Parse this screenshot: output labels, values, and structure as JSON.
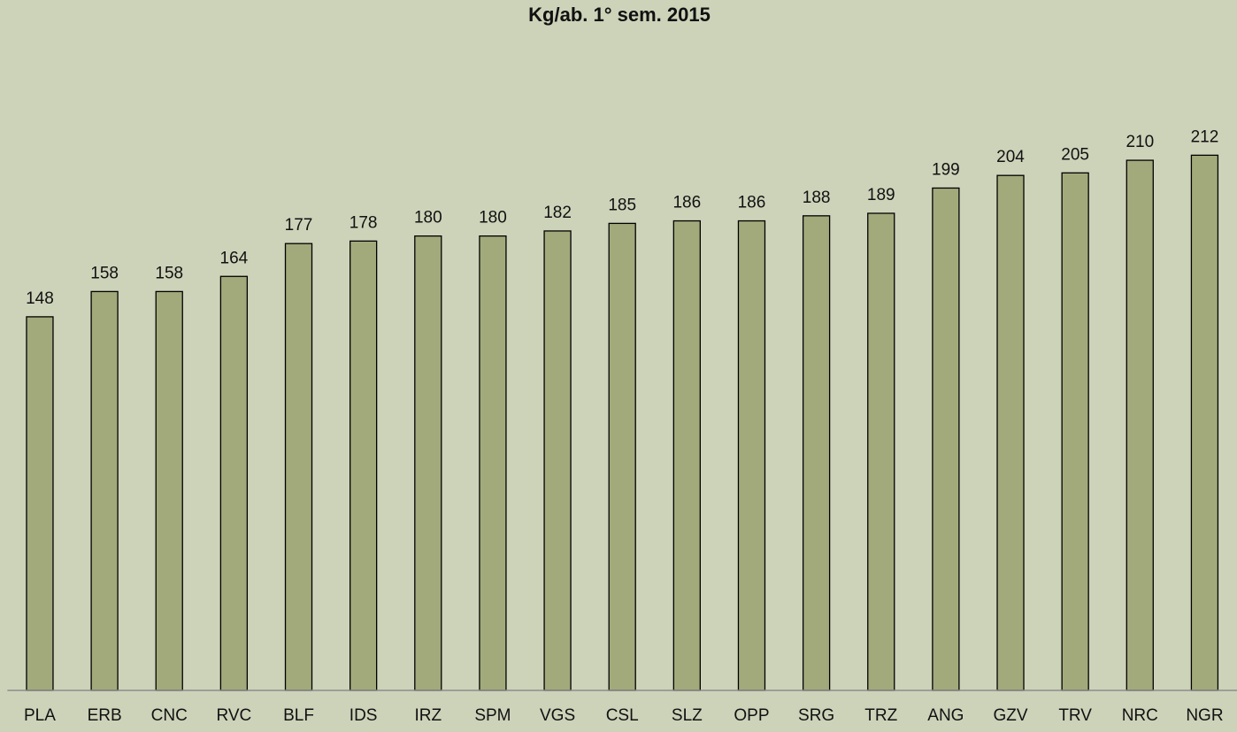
{
  "chart_data": {
    "type": "bar",
    "title": "Kg/ab. 1° sem. 2015",
    "categories": [
      "PLA",
      "ERB",
      "CNC",
      "RVC",
      "BLF",
      "IDS",
      "IRZ",
      "SPM",
      "VGS",
      "CSL",
      "SLZ",
      "OPP",
      "SRG",
      "TRZ",
      "ANG",
      "GZV",
      "TRV",
      "NRC",
      "NGR"
    ],
    "values": [
      148,
      158,
      158,
      164,
      177,
      178,
      180,
      180,
      182,
      185,
      186,
      186,
      188,
      189,
      199,
      204,
      205,
      210,
      212
    ],
    "color": "#a2aa7c",
    "ylim": [
      0,
      250
    ]
  }
}
